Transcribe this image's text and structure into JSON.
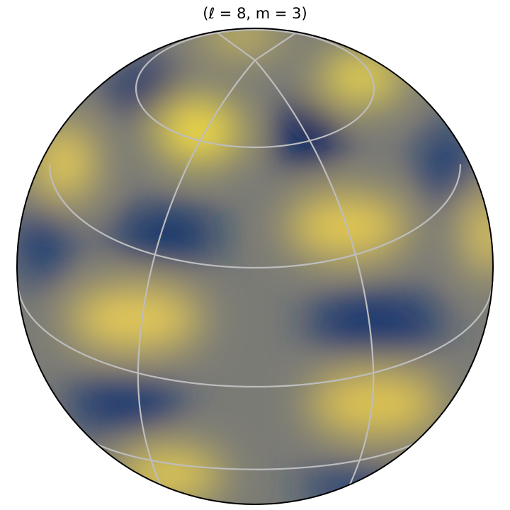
{
  "chart_data": {
    "type": "orthographic-map",
    "title": "(ℓ = 8, m = 3)"
  }
}
